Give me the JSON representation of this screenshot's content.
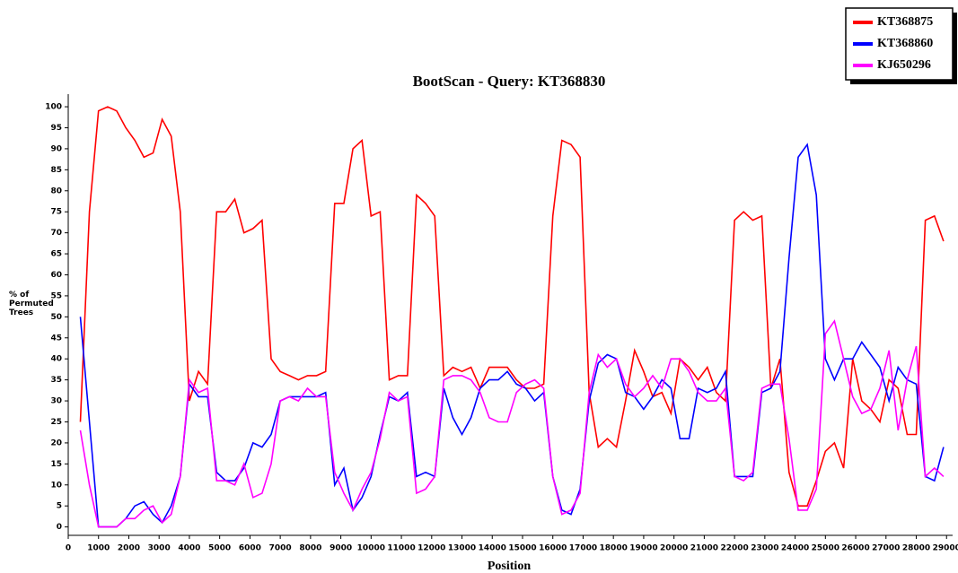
{
  "chart_data": {
    "type": "line",
    "title": "BootScan - Query: KT368830",
    "xlabel": "Position",
    "ylabel": "% of Permuted Trees",
    "legend": "top-right",
    "x": [
      400,
      700,
      1000,
      1300,
      1600,
      1900,
      2200,
      2500,
      2800,
      3100,
      3400,
      3700,
      4000,
      4300,
      4600,
      4900,
      5200,
      5500,
      5800,
      6100,
      6400,
      6700,
      7000,
      7300,
      7600,
      7900,
      8200,
      8500,
      8800,
      9100,
      9400,
      9700,
      10000,
      10300,
      10600,
      10900,
      11200,
      11500,
      11800,
      12100,
      12400,
      12700,
      13000,
      13300,
      13600,
      13900,
      14200,
      14500,
      14800,
      15100,
      15400,
      15700,
      16000,
      16300,
      16600,
      16900,
      17200,
      17500,
      17800,
      18100,
      18400,
      18700,
      19000,
      19300,
      19600,
      19900,
      20200,
      20500,
      20800,
      21100,
      21400,
      21700,
      22000,
      22300,
      22600,
      22900,
      23200,
      23500,
      23800,
      24100,
      24400,
      24700,
      25000,
      25300,
      25600,
      25900,
      26200,
      26500,
      26800,
      27100,
      27400,
      27700,
      28000,
      28300,
      28600,
      28900
    ],
    "series": [
      {
        "name": "KT368875",
        "color": "#ff0000",
        "values": [
          25,
          75,
          99,
          100,
          99,
          95,
          92,
          88,
          89,
          97,
          93,
          75,
          30,
          37,
          34,
          75,
          75,
          78,
          70,
          71,
          73,
          40,
          37,
          36,
          35,
          36,
          36,
          37,
          77,
          77,
          90,
          92,
          74,
          75,
          35,
          36,
          36,
          79,
          77,
          74,
          36,
          38,
          37,
          38,
          33,
          38,
          38,
          38,
          35,
          33,
          33,
          34,
          74,
          92,
          91,
          88,
          32,
          19,
          21,
          19,
          30,
          42,
          37,
          31,
          32,
          27,
          40,
          38,
          35,
          38,
          32,
          30,
          73,
          75,
          73,
          74,
          33,
          40,
          13,
          5,
          5,
          11,
          18,
          20,
          14,
          40,
          30,
          28,
          25,
          35,
          33,
          22,
          22,
          73,
          74,
          68
        ]
      },
      {
        "name": "KT368860",
        "color": "#0000ff",
        "values": [
          50,
          25,
          0,
          0,
          0,
          2,
          5,
          6,
          3,
          1,
          5,
          12,
          34,
          31,
          31,
          13,
          11,
          11,
          14,
          20,
          19,
          22,
          30,
          31,
          31,
          31,
          31,
          32,
          10,
          14,
          4,
          7,
          12,
          22,
          31,
          30,
          32,
          12,
          13,
          12,
          33,
          26,
          22,
          26,
          33,
          35,
          35,
          37,
          34,
          33,
          30,
          32,
          12,
          4,
          3,
          9,
          30,
          39,
          41,
          40,
          32,
          31,
          28,
          31,
          35,
          33,
          21,
          21,
          33,
          32,
          33,
          37,
          12,
          12,
          12,
          32,
          33,
          37,
          64,
          88,
          91,
          79,
          40,
          35,
          40,
          40,
          44,
          41,
          38,
          30,
          38,
          35,
          34,
          12,
          11,
          19
        ]
      },
      {
        "name": "KJ650296",
        "color": "#ff00ff",
        "values": [
          23,
          10,
          0,
          0,
          0,
          2,
          2,
          4,
          5,
          1,
          3,
          12,
          35,
          32,
          33,
          11,
          11,
          10,
          15,
          7,
          8,
          15,
          30,
          31,
          30,
          33,
          31,
          31,
          13,
          8,
          4,
          9,
          13,
          21,
          32,
          30,
          31,
          8,
          9,
          12,
          35,
          36,
          36,
          35,
          32,
          26,
          25,
          25,
          32,
          34,
          35,
          33,
          12,
          3,
          4,
          8,
          32,
          41,
          38,
          40,
          34,
          31,
          33,
          36,
          33,
          40,
          40,
          37,
          32,
          30,
          30,
          33,
          12,
          11,
          13,
          33,
          34,
          34,
          21,
          4,
          4,
          9,
          46,
          49,
          40,
          31,
          27,
          28,
          33,
          42,
          23,
          35,
          43,
          12,
          14,
          12
        ]
      }
    ],
    "xlim": [
      0,
      29200
    ],
    "xticks": [
      0,
      1000,
      2000,
      3000,
      4000,
      5000,
      6000,
      7000,
      8000,
      9000,
      10000,
      11000,
      12000,
      13000,
      14000,
      15000,
      16000,
      17000,
      18000,
      19000,
      20000,
      21000,
      22000,
      23000,
      24000,
      25000,
      26000,
      27000,
      28000,
      29000
    ],
    "ylim": [
      -2,
      103
    ],
    "yticks": [
      0,
      5,
      10,
      15,
      20,
      25,
      30,
      35,
      40,
      45,
      50,
      55,
      60,
      65,
      70,
      75,
      80,
      85,
      90,
      95,
      100
    ],
    "grid": false
  }
}
